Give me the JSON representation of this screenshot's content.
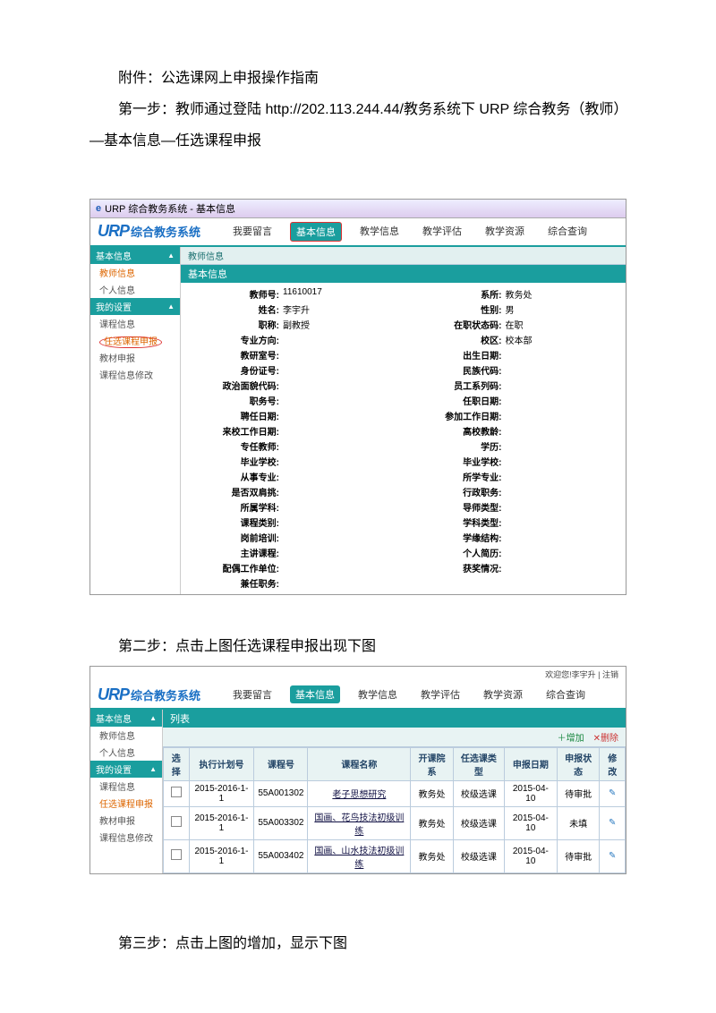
{
  "doc": {
    "p1": "附件：公选课网上申报操作指南",
    "p2": "第一步：教师通过登陆 http://202.113.244.44/教务系统下 URP 综合教务（教师）—基本信息—任选课程申报",
    "p3": "第二步：点击上图任选课程申报出现下图",
    "p4": "第三步：点击上图的增加，显示下图"
  },
  "s1": {
    "wintitle": "URP 综合教务系统 - 基本信息",
    "brand_en": "URP",
    "brand_cn": "综合教务系统",
    "menu": [
      "我要留言",
      "基本信息",
      "教学信息",
      "教学评估",
      "教学资源",
      "综合查询"
    ],
    "side1": {
      "cap": "基本信息",
      "items": [
        "教师信息",
        "个人信息"
      ],
      "hot": 0
    },
    "side2": {
      "cap": "我的设置",
      "items": [
        "课程信息",
        "任选课程申报",
        "教材申报",
        "课程信息修改"
      ],
      "circled": 1
    },
    "content_hdr": "教师信息",
    "teal_hdr": "基本信息",
    "left": [
      [
        "教师号:",
        "11610017"
      ],
      [
        "姓名:",
        "李宇升"
      ],
      [
        "职称:",
        "副教授"
      ],
      [
        "专业方向:",
        ""
      ],
      [
        "教研室号:",
        ""
      ],
      [
        "身份证号:",
        ""
      ],
      [
        "政治面貌代码:",
        ""
      ],
      [
        "职务号:",
        ""
      ],
      [
        "聘任日期:",
        ""
      ],
      [
        "来校工作日期:",
        ""
      ],
      [
        "专任教师:",
        ""
      ],
      [
        "毕业学校:",
        ""
      ],
      [
        "从事专业:",
        ""
      ],
      [
        "是否双肩挑:",
        ""
      ],
      [
        "所属学科:",
        ""
      ],
      [
        "课程类别:",
        ""
      ],
      [
        "岗前培训:",
        ""
      ],
      [
        "主讲课程:",
        ""
      ],
      [
        "配偶工作单位:",
        ""
      ]
    ],
    "right": [
      [
        "系所:",
        "教务处"
      ],
      [
        "性别:",
        "男"
      ],
      [
        "在职状态码:",
        "在职"
      ],
      [
        "校区:",
        "校本部"
      ],
      [
        "出生日期:",
        ""
      ],
      [
        "民族代码:",
        ""
      ],
      [
        "员工系列码:",
        ""
      ],
      [
        "任职日期:",
        ""
      ],
      [
        "参加工作日期:",
        ""
      ],
      [
        "高校教龄:",
        ""
      ],
      [
        "学历:",
        ""
      ],
      [
        "毕业学校:",
        ""
      ],
      [
        "所学专业:",
        ""
      ],
      [
        "行政职务:",
        ""
      ],
      [
        "导师类型:",
        ""
      ],
      [
        "学科类型:",
        ""
      ],
      [
        "学缘结构:",
        ""
      ],
      [
        "个人简历:",
        ""
      ],
      [
        "获奖情况:",
        ""
      ],
      [
        "兼任职务:",
        ""
      ]
    ]
  },
  "s2": {
    "welcome": "欢迎您!李宇升 | 注销",
    "menu": [
      "我要留言",
      "基本信息",
      "教学信息",
      "教学评估",
      "教学资源",
      "综合查询"
    ],
    "side1": {
      "cap": "基本信息",
      "items": [
        "教师信息",
        "个人信息"
      ]
    },
    "side2": {
      "cap": "我的设置",
      "items": [
        "课程信息",
        "任选课程申报",
        "教材申报",
        "课程信息修改"
      ],
      "hot": 1
    },
    "list_label": "列表",
    "add": "增加",
    "del": "删除",
    "cols": [
      "选择",
      "执行计划号",
      "课程号",
      "课程名称",
      "开课院系",
      "任选课类型",
      "申报日期",
      "申报状态",
      "修改"
    ],
    "rows": [
      [
        "2015-2016-1-1",
        "55A001302",
        "老子思想研究",
        "教务处",
        "校级选课",
        "2015-04-10",
        "待审批"
      ],
      [
        "2015-2016-1-1",
        "55A003302",
        "国画、花鸟技法初级训练",
        "教务处",
        "校级选课",
        "2015-04-10",
        "未填"
      ],
      [
        "2015-2016-1-1",
        "55A003402",
        "国画、山水技法初级训练",
        "教务处",
        "校级选课",
        "2015-04-10",
        "待审批"
      ]
    ]
  }
}
